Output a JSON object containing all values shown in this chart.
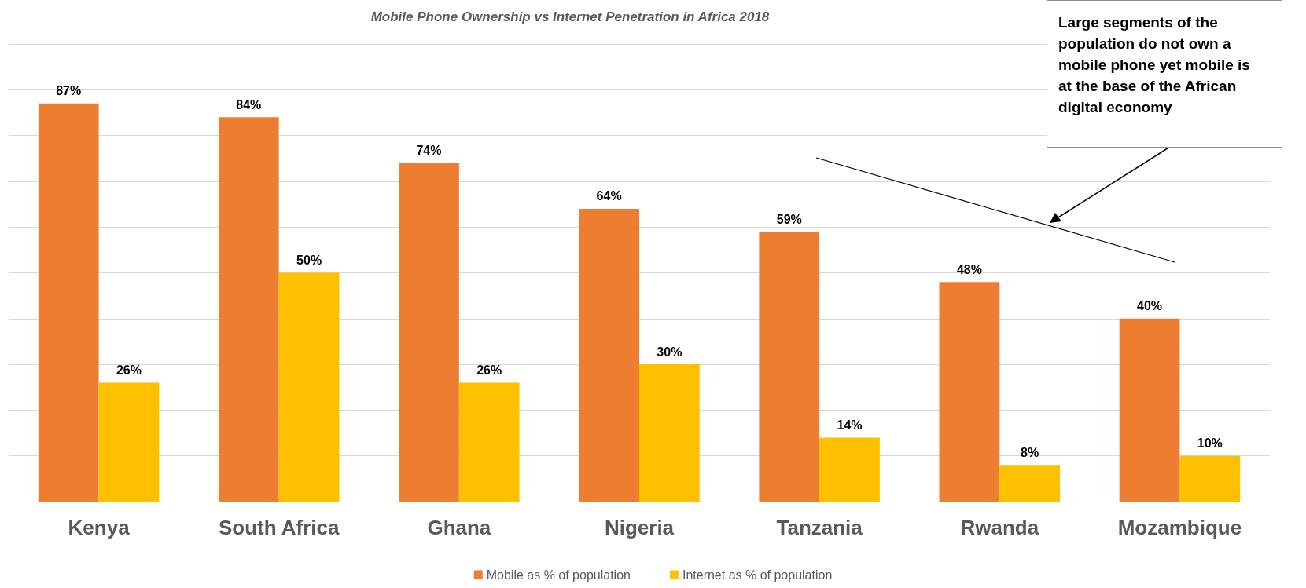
{
  "chart_data": {
    "type": "bar",
    "title": "Mobile Phone Ownership vs Internet Penetration in Africa 2018",
    "categories": [
      "Kenya",
      "South Africa",
      "Ghana",
      "Nigeria",
      "Tanzania",
      "Rwanda",
      "Mozambique"
    ],
    "series": [
      {
        "name": "Mobile as % of population",
        "color": "#ed7d31",
        "values": [
          87,
          84,
          74,
          64,
          59,
          48,
          40
        ],
        "value_labels": [
          "87%",
          "84%",
          "74%",
          "64%",
          "59%",
          "48%",
          "40%"
        ]
      },
      {
        "name": "Internet as % of population",
        "color": "#ffc000",
        "values": [
          26,
          50,
          26,
          30,
          14,
          8,
          10
        ],
        "value_labels": [
          "26%",
          "50%",
          "26%",
          "30%",
          "14%",
          "8%",
          "10%"
        ]
      }
    ],
    "ylim": [
      0,
      100
    ],
    "yticks": [
      {
        "value": 0,
        "label": null
      },
      {
        "value": 10,
        "label": null
      },
      {
        "value": 20,
        "label": null
      },
      {
        "value": 30,
        "label": null
      },
      {
        "value": 40,
        "label": null
      },
      {
        "value": 50,
        "label": null
      },
      {
        "value": 60,
        "label": null
      },
      {
        "value": 70,
        "label": null
      },
      {
        "value": 80,
        "label": null
      },
      {
        "value": 90,
        "label": null
      },
      {
        "value": 100,
        "label": null
      }
    ],
    "tick_labels": "x",
    "grid": "y",
    "legend": "bottom",
    "annotations": [
      "Large segments of the population do not own a mobile phone yet mobile is at the base of the African digital economy"
    ]
  }
}
